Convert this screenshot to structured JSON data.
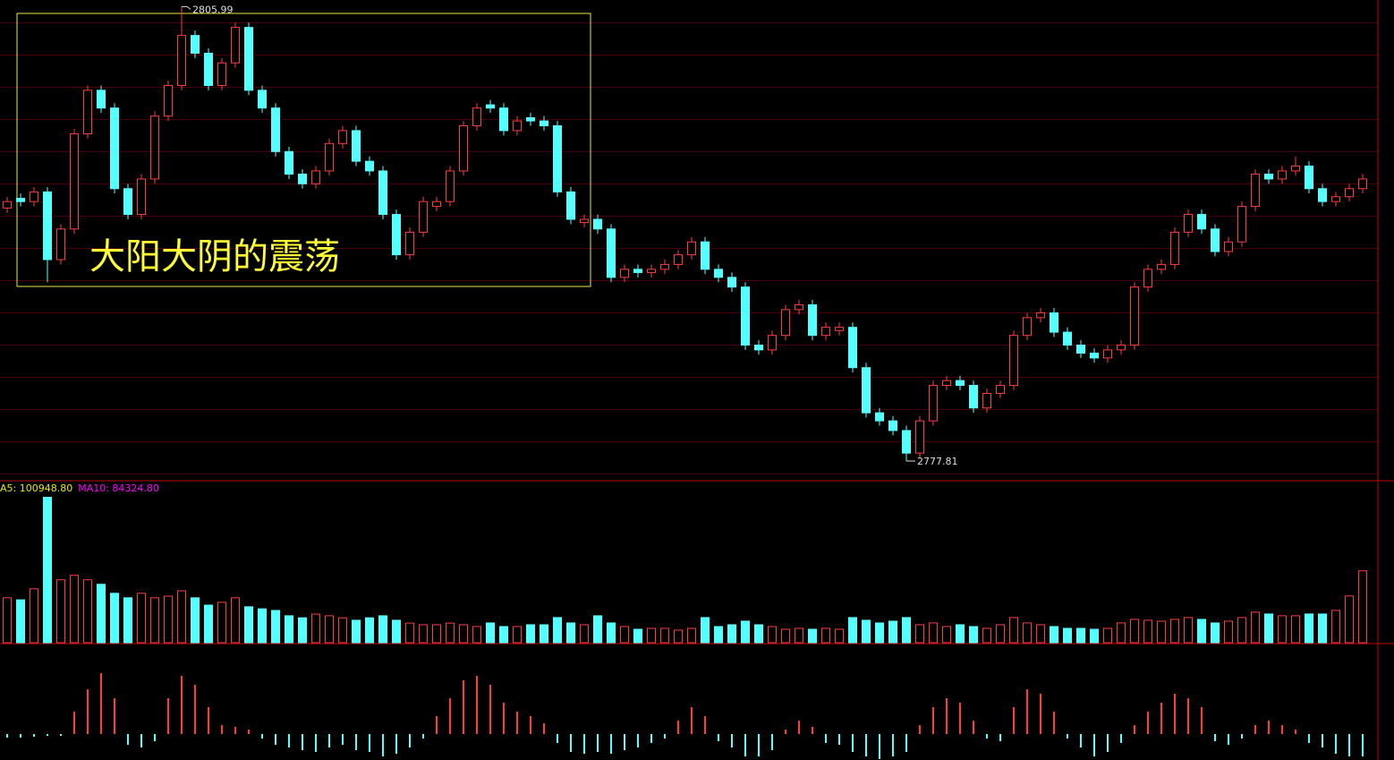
{
  "chart_data": [
    {
      "type": "candlestick",
      "annotation": "大阳大阴的震荡",
      "up_color": "#ff3c3c",
      "down_color": "#54ffff",
      "ylim": [
        2776.7,
        2806.4
      ],
      "ohlc": [
        [
          2793.5,
          2794.2,
          2793.2,
          2793.9
        ],
        [
          2794.1,
          2794.4,
          2793.6,
          2793.9
        ],
        [
          2793.9,
          2794.8,
          2793.6,
          2794.5
        ],
        [
          2794.5,
          2794.8,
          2788.9,
          2790.3
        ],
        [
          2790.3,
          2792.5,
          2790.0,
          2792.2
        ],
        [
          2792.2,
          2798.4,
          2791.9,
          2798.1
        ],
        [
          2798.1,
          2801.1,
          2797.8,
          2800.8
        ],
        [
          2800.8,
          2801.1,
          2799.4,
          2799.7
        ],
        [
          2799.7,
          2800.0,
          2794.4,
          2794.7
        ],
        [
          2794.7,
          2795.0,
          2792.8,
          2793.1
        ],
        [
          2793.1,
          2795.6,
          2792.8,
          2795.3
        ],
        [
          2795.3,
          2799.5,
          2795.0,
          2799.2
        ],
        [
          2799.2,
          2801.4,
          2798.9,
          2801.1
        ],
        [
          2801.1,
          2805.99,
          2800.8,
          2804.2
        ],
        [
          2804.2,
          2804.5,
          2802.8,
          2803.1
        ],
        [
          2803.1,
          2803.4,
          2800.8,
          2801.1
        ],
        [
          2801.1,
          2802.8,
          2800.8,
          2802.5
        ],
        [
          2802.5,
          2805.0,
          2802.2,
          2804.7
        ],
        [
          2804.7,
          2805.0,
          2800.5,
          2800.8
        ],
        [
          2800.8,
          2801.1,
          2799.4,
          2799.7
        ],
        [
          2799.7,
          2800.0,
          2796.7,
          2797.0
        ],
        [
          2797.0,
          2797.3,
          2795.3,
          2795.6
        ],
        [
          2795.6,
          2795.9,
          2794.7,
          2795.0
        ],
        [
          2795.0,
          2796.1,
          2794.7,
          2795.8
        ],
        [
          2795.8,
          2797.8,
          2795.5,
          2797.5
        ],
        [
          2797.5,
          2798.6,
          2797.2,
          2798.3
        ],
        [
          2798.3,
          2798.6,
          2796.1,
          2796.4
        ],
        [
          2796.4,
          2796.7,
          2795.5,
          2795.8
        ],
        [
          2795.8,
          2796.1,
          2792.8,
          2793.1
        ],
        [
          2793.1,
          2793.4,
          2790.3,
          2790.6
        ],
        [
          2790.6,
          2792.3,
          2790.3,
          2792.0
        ],
        [
          2792.0,
          2794.2,
          2791.7,
          2793.9
        ],
        [
          2793.6,
          2794.2,
          2793.3,
          2793.9
        ],
        [
          2793.9,
          2796.1,
          2793.6,
          2795.8
        ],
        [
          2795.8,
          2798.9,
          2795.5,
          2798.6
        ],
        [
          2798.6,
          2800.0,
          2798.3,
          2799.7
        ],
        [
          2799.9,
          2800.2,
          2799.4,
          2799.7
        ],
        [
          2799.7,
          2800.0,
          2798.0,
          2798.3
        ],
        [
          2798.3,
          2799.2,
          2798.0,
          2798.9
        ],
        [
          2799.1,
          2799.4,
          2798.6,
          2798.9
        ],
        [
          2798.9,
          2799.2,
          2798.3,
          2798.6
        ],
        [
          2798.6,
          2798.9,
          2794.2,
          2794.5
        ],
        [
          2794.5,
          2794.8,
          2792.5,
          2792.8
        ],
        [
          2792.6,
          2793.1,
          2792.3,
          2792.8
        ],
        [
          2792.8,
          2793.1,
          2791.9,
          2792.2
        ],
        [
          2792.2,
          2792.5,
          2788.9,
          2789.2
        ],
        [
          2789.2,
          2790.0,
          2788.9,
          2789.7
        ],
        [
          2789.7,
          2790.0,
          2789.2,
          2789.5
        ],
        [
          2789.5,
          2790.0,
          2789.2,
          2789.7
        ],
        [
          2789.7,
          2790.3,
          2789.4,
          2790.0
        ],
        [
          2790.0,
          2790.9,
          2789.7,
          2790.6
        ],
        [
          2790.6,
          2791.7,
          2790.3,
          2791.4
        ],
        [
          2791.4,
          2791.7,
          2789.4,
          2789.7
        ],
        [
          2789.7,
          2790.0,
          2788.9,
          2789.2
        ],
        [
          2789.2,
          2789.5,
          2788.3,
          2788.6
        ],
        [
          2788.6,
          2788.9,
          2784.7,
          2785.0
        ],
        [
          2785.0,
          2785.3,
          2784.4,
          2784.7
        ],
        [
          2784.7,
          2785.9,
          2784.4,
          2785.6
        ],
        [
          2785.6,
          2787.5,
          2785.3,
          2787.2
        ],
        [
          2787.2,
          2787.8,
          2786.9,
          2787.5
        ],
        [
          2787.5,
          2787.8,
          2785.3,
          2785.6
        ],
        [
          2785.6,
          2786.4,
          2785.3,
          2786.1
        ],
        [
          2785.9,
          2786.4,
          2785.6,
          2786.1
        ],
        [
          2786.1,
          2786.4,
          2783.3,
          2783.6
        ],
        [
          2783.6,
          2783.9,
          2780.5,
          2780.8
        ],
        [
          2780.8,
          2781.1,
          2780.0,
          2780.3
        ],
        [
          2780.3,
          2780.6,
          2779.4,
          2779.7
        ],
        [
          2779.7,
          2780.0,
          2777.81,
          2778.3
        ],
        [
          2778.3,
          2780.6,
          2778.0,
          2780.3
        ],
        [
          2780.3,
          2782.8,
          2780.0,
          2782.5
        ],
        [
          2782.5,
          2783.1,
          2782.2,
          2782.8
        ],
        [
          2782.8,
          2783.1,
          2782.2,
          2782.5
        ],
        [
          2782.5,
          2782.8,
          2780.8,
          2781.1
        ],
        [
          2781.1,
          2782.3,
          2780.8,
          2782.0
        ],
        [
          2782.0,
          2782.8,
          2781.7,
          2782.5
        ],
        [
          2782.5,
          2785.9,
          2782.2,
          2785.6
        ],
        [
          2785.6,
          2787.0,
          2785.3,
          2786.7
        ],
        [
          2786.7,
          2787.3,
          2786.4,
          2787.0
        ],
        [
          2787.0,
          2787.3,
          2785.5,
          2785.8
        ],
        [
          2785.8,
          2786.1,
          2784.7,
          2785.0
        ],
        [
          2785.0,
          2785.3,
          2784.2,
          2784.5
        ],
        [
          2784.5,
          2784.8,
          2783.9,
          2784.2
        ],
        [
          2784.2,
          2785.0,
          2783.9,
          2784.7
        ],
        [
          2784.7,
          2785.3,
          2784.4,
          2785.0
        ],
        [
          2785.0,
          2788.9,
          2784.7,
          2788.6
        ],
        [
          2788.6,
          2790.0,
          2788.3,
          2789.7
        ],
        [
          2789.7,
          2790.3,
          2789.4,
          2790.0
        ],
        [
          2790.0,
          2792.3,
          2789.7,
          2792.0
        ],
        [
          2792.0,
          2793.4,
          2791.7,
          2793.1
        ],
        [
          2793.1,
          2793.4,
          2791.9,
          2792.2
        ],
        [
          2792.2,
          2792.5,
          2790.5,
          2790.8
        ],
        [
          2790.8,
          2791.7,
          2790.5,
          2791.4
        ],
        [
          2791.4,
          2793.9,
          2791.1,
          2793.6
        ],
        [
          2793.6,
          2795.9,
          2793.3,
          2795.6
        ],
        [
          2795.6,
          2795.9,
          2795.0,
          2795.3
        ],
        [
          2795.3,
          2796.1,
          2795.0,
          2795.8
        ],
        [
          2795.8,
          2796.7,
          2795.5,
          2796.1
        ],
        [
          2796.1,
          2796.4,
          2794.4,
          2794.7
        ],
        [
          2794.7,
          2795.0,
          2793.6,
          2793.9
        ],
        [
          2793.9,
          2794.5,
          2793.6,
          2794.2
        ],
        [
          2794.2,
          2795.0,
          2793.9,
          2794.7
        ],
        [
          2794.7,
          2795.6,
          2794.4,
          2795.3
        ]
      ]
    },
    {
      "type": "bar",
      "ma_labels": [
        {
          "text": "A5: 100948.80",
          "color": "#e8e800"
        },
        {
          "text": "MA10: 84324.80",
          "color": "#ff00ff"
        }
      ],
      "ylim": [
        0,
        390000
      ],
      "values": [
        110000,
        105000,
        132000,
        356000,
        154000,
        165000,
        154000,
        143000,
        121000,
        110000,
        121000,
        110000,
        114000,
        127000,
        110000,
        92000,
        99000,
        110000,
        88000,
        83000,
        79000,
        66000,
        61000,
        70000,
        66000,
        61000,
        55000,
        61000,
        66000,
        55000,
        48000,
        44000,
        44000,
        48000,
        44000,
        39600,
        48400,
        39600,
        39600,
        44000,
        44000,
        61600,
        48400,
        44000,
        66000,
        48400,
        39600,
        33000,
        35200,
        35200,
        30800,
        35200,
        61600,
        39600,
        44000,
        52800,
        44000,
        39600,
        33000,
        35200,
        33000,
        35200,
        33000,
        61600,
        55000,
        48400,
        52800,
        61600,
        44000,
        48400,
        39600,
        44000,
        39600,
        35200,
        44000,
        61600,
        48400,
        44000,
        39600,
        35200,
        35200,
        33000,
        35200,
        48400,
        57200,
        55000,
        52800,
        57200,
        61600,
        57200,
        48400,
        52800,
        61600,
        74800,
        70400,
        66000,
        66000,
        70400,
        70400,
        79200,
        114400,
        176000
      ]
    },
    {
      "type": "bar",
      "ylim": [
        -29,
        98
      ],
      "up_color": "#ff3c3c",
      "down_color": "#54ffff",
      "values": [
        -4,
        -4,
        -3,
        -2,
        -2,
        25,
        50,
        68,
        40,
        -12,
        -15,
        -8,
        40,
        65,
        55,
        30,
        10,
        8,
        5,
        -5,
        -12,
        -15,
        -18,
        -20,
        -15,
        -12,
        -18,
        -20,
        -25,
        -22,
        -15,
        -5,
        20,
        40,
        60,
        65,
        55,
        35,
        25,
        20,
        12,
        -10,
        -20,
        -22,
        -20,
        -22,
        -18,
        -15,
        -10,
        -5,
        15,
        30,
        20,
        -8,
        -15,
        -25,
        -25,
        -18,
        5,
        15,
        8,
        -10,
        -12,
        -20,
        -25,
        -28,
        -25,
        -20,
        10,
        30,
        40,
        35,
        15,
        -5,
        -8,
        30,
        50,
        45,
        25,
        -5,
        -15,
        -25,
        -20,
        -10,
        10,
        25,
        35,
        45,
        40,
        30,
        -8,
        -12,
        -5,
        10,
        15,
        10,
        5,
        -10,
        -15,
        -22,
        -25,
        -25
      ]
    }
  ]
}
